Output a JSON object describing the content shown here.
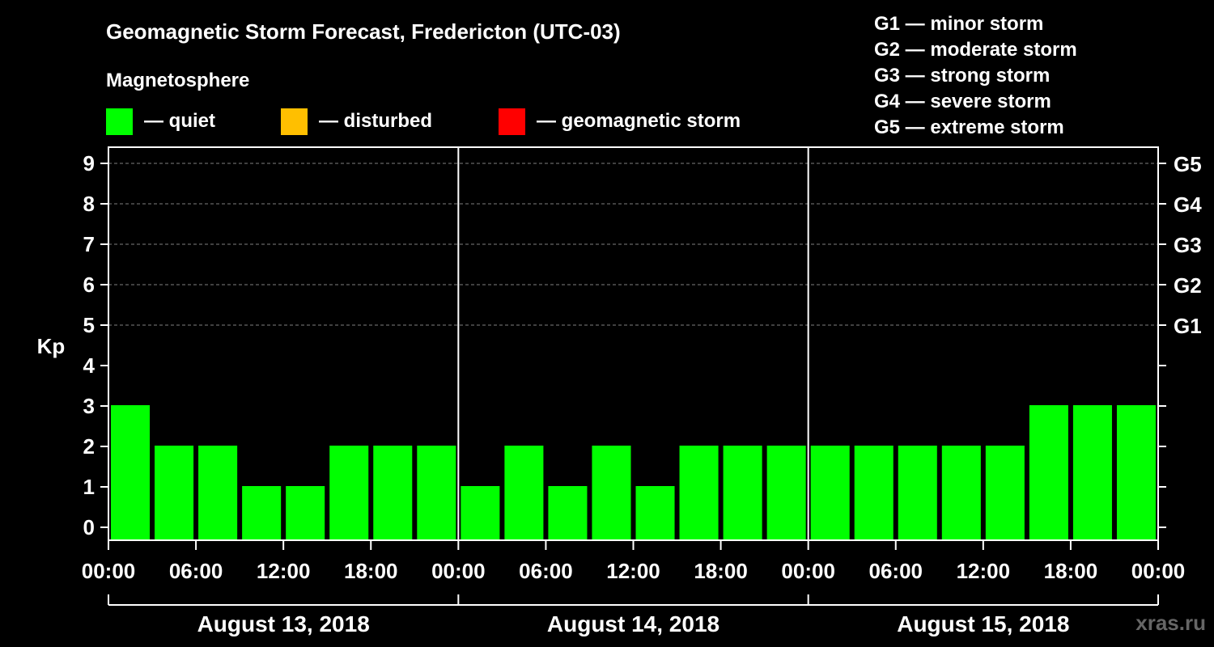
{
  "title": "Geomagnetic Storm Forecast, Fredericton (UTC-03)",
  "legend_title": "Magnetosphere",
  "legend": [
    {
      "label": "— quiet",
      "color": "#00ff00"
    },
    {
      "label": "— disturbed",
      "color": "#ffbf00"
    },
    {
      "label": "— geomagnetic storm",
      "color": "#ff0000"
    }
  ],
  "storm_levels": [
    "G1 — minor storm",
    "G2 — moderate storm",
    "G3 — strong storm",
    "G4 — severe storm",
    "G5 — extreme storm"
  ],
  "watermark": "xras.ru",
  "colors": {
    "background": "#000000",
    "axis": "#ffffff",
    "grid": "#808080",
    "quiet": "#00ff00"
  },
  "chart_data": {
    "type": "bar",
    "ylabel": "Kp",
    "ylim": [
      0,
      9
    ],
    "yticks": [
      0,
      1,
      2,
      3,
      4,
      5,
      6,
      7,
      8,
      9
    ],
    "y_right_labels": [
      {
        "kp": 5,
        "label": "G1"
      },
      {
        "kp": 6,
        "label": "G2"
      },
      {
        "kp": 7,
        "label": "G3"
      },
      {
        "kp": 8,
        "label": "G4"
      },
      {
        "kp": 9,
        "label": "G5"
      }
    ],
    "grid_levels": [
      5,
      6,
      7,
      8,
      9
    ],
    "xtick_labels": [
      "00:00",
      "06:00",
      "12:00",
      "18:00",
      "00:00",
      "06:00",
      "12:00",
      "18:00",
      "00:00",
      "06:00",
      "12:00",
      "18:00",
      "00:00"
    ],
    "days": [
      "August 13, 2018",
      "August 14, 2018",
      "August 15, 2018"
    ],
    "intervals_per_day": 8,
    "values": [
      3,
      2,
      2,
      1,
      1,
      2,
      2,
      2,
      1,
      2,
      1,
      2,
      1,
      2,
      2,
      2,
      2,
      2,
      2,
      2,
      2,
      3,
      3,
      3
    ],
    "status": [
      "quiet",
      "quiet",
      "quiet",
      "quiet",
      "quiet",
      "quiet",
      "quiet",
      "quiet",
      "quiet",
      "quiet",
      "quiet",
      "quiet",
      "quiet",
      "quiet",
      "quiet",
      "quiet",
      "quiet",
      "quiet",
      "quiet",
      "quiet",
      "quiet",
      "quiet",
      "quiet",
      "quiet"
    ]
  }
}
